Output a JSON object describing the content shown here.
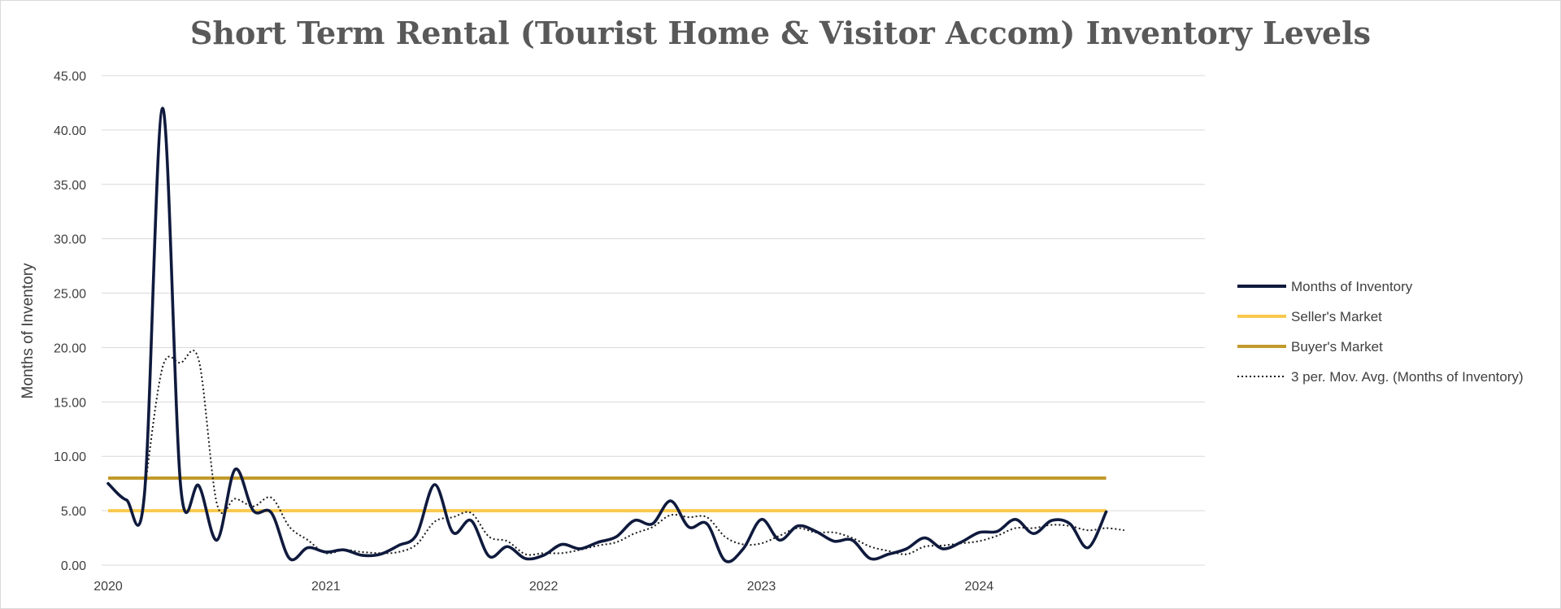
{
  "chart_data": {
    "type": "line",
    "title": "Short Term Rental (Tourist Home & Visitor Accom) Inventory Levels",
    "xlabel": "",
    "ylabel": "Months of Inventory",
    "ylim": [
      0,
      45
    ],
    "y_ticks": [
      "0.00",
      "5.00",
      "10.00",
      "15.00",
      "20.00",
      "25.00",
      "30.00",
      "35.00",
      "40.00",
      "45.00"
    ],
    "x_ticks": [
      "2020",
      "2021",
      "2022",
      "2023",
      "2024"
    ],
    "x_domain": [
      "2020-01",
      "2024-08"
    ],
    "grid": true,
    "legend_position": "right",
    "series": [
      {
        "name": "Months of Inventory",
        "color": "#0f1a3d",
        "style": "solid",
        "x": [
          "2020-01",
          "2020-02",
          "2020-03",
          "2020-04",
          "2020-05",
          "2020-06",
          "2020-07",
          "2020-08",
          "2020-09",
          "2020-10",
          "2020-11",
          "2020-12",
          "2021-01",
          "2021-02",
          "2021-03",
          "2021-04",
          "2021-05",
          "2021-06",
          "2021-07",
          "2021-08",
          "2021-09",
          "2021-10",
          "2021-11",
          "2021-12",
          "2022-01",
          "2022-02",
          "2022-03",
          "2022-04",
          "2022-05",
          "2022-06",
          "2022-07",
          "2022-08",
          "2022-09",
          "2022-10",
          "2022-11",
          "2022-12",
          "2023-01",
          "2023-02",
          "2023-03",
          "2023-04",
          "2023-05",
          "2023-06",
          "2023-07",
          "2023-08",
          "2023-09",
          "2023-10",
          "2023-11",
          "2023-12",
          "2024-01",
          "2024-02",
          "2024-03",
          "2024-04",
          "2024-05",
          "2024-06",
          "2024-07",
          "2024-08"
        ],
        "values": [
          7.5,
          6.0,
          6.5,
          42.0,
          7.2,
          7.3,
          2.3,
          8.8,
          5.0,
          4.8,
          0.6,
          1.6,
          1.2,
          1.4,
          0.9,
          1.0,
          1.8,
          2.8,
          7.4,
          3.0,
          4.1,
          0.8,
          1.7,
          0.6,
          0.9,
          1.9,
          1.5,
          2.1,
          2.6,
          4.1,
          3.8,
          5.9,
          3.5,
          3.8,
          0.4,
          1.5,
          4.2,
          2.3,
          3.6,
          3.1,
          2.2,
          2.3,
          0.6,
          1.0,
          1.5,
          2.5,
          1.5,
          2.1,
          3.0,
          3.1,
          4.2,
          2.9,
          4.1,
          3.8,
          1.6,
          4.9
        ]
      },
      {
        "name": "Seller's Market",
        "color": "#f8c94e",
        "style": "solid",
        "x": [
          "2020-01",
          "2024-08"
        ],
        "values": [
          5,
          5
        ]
      },
      {
        "name": "Buyer's Market",
        "color": "#c29a2b",
        "style": "solid",
        "x": [
          "2020-01",
          "2024-08"
        ],
        "values": [
          8,
          8
        ]
      },
      {
        "name": "3 per. Mov. Avg. (Months of Inventory)",
        "color": "#1a1a1a",
        "style": "dotted",
        "x": [
          "2020-03",
          "2020-04",
          "2020-05",
          "2020-06",
          "2020-07",
          "2020-08",
          "2020-09",
          "2020-10",
          "2020-11",
          "2020-12",
          "2021-01",
          "2021-02",
          "2021-03",
          "2021-04",
          "2021-05",
          "2021-06",
          "2021-07",
          "2021-08",
          "2021-09",
          "2021-10",
          "2021-11",
          "2021-12",
          "2022-01",
          "2022-02",
          "2022-03",
          "2022-04",
          "2022-05",
          "2022-06",
          "2022-07",
          "2022-08",
          "2022-09",
          "2022-10",
          "2022-11",
          "2022-12",
          "2023-01",
          "2023-02",
          "2023-03",
          "2023-04",
          "2023-05",
          "2023-06",
          "2023-07",
          "2023-08",
          "2023-09",
          "2023-10",
          "2023-11",
          "2023-12",
          "2024-01",
          "2024-02",
          "2024-03",
          "2024-04",
          "2024-05",
          "2024-06",
          "2024-07",
          "2024-08",
          "2024-09"
        ],
        "values": [
          6.7,
          18.2,
          18.6,
          18.8,
          5.6,
          6.1,
          5.4,
          6.2,
          3.5,
          2.3,
          1.1,
          1.4,
          1.2,
          1.1,
          1.2,
          1.9,
          4.0,
          4.4,
          4.8,
          2.6,
          2.2,
          1.0,
          1.1,
          1.1,
          1.4,
          1.8,
          2.1,
          2.9,
          3.5,
          4.6,
          4.4,
          4.4,
          2.6,
          1.9,
          2.0,
          2.7,
          3.4,
          3.0,
          3.0,
          2.5,
          1.7,
          1.3,
          1.0,
          1.7,
          1.8,
          2.0,
          2.2,
          2.7,
          3.4,
          3.4,
          3.7,
          3.6,
          3.2,
          3.4,
          3.2
        ]
      }
    ]
  }
}
